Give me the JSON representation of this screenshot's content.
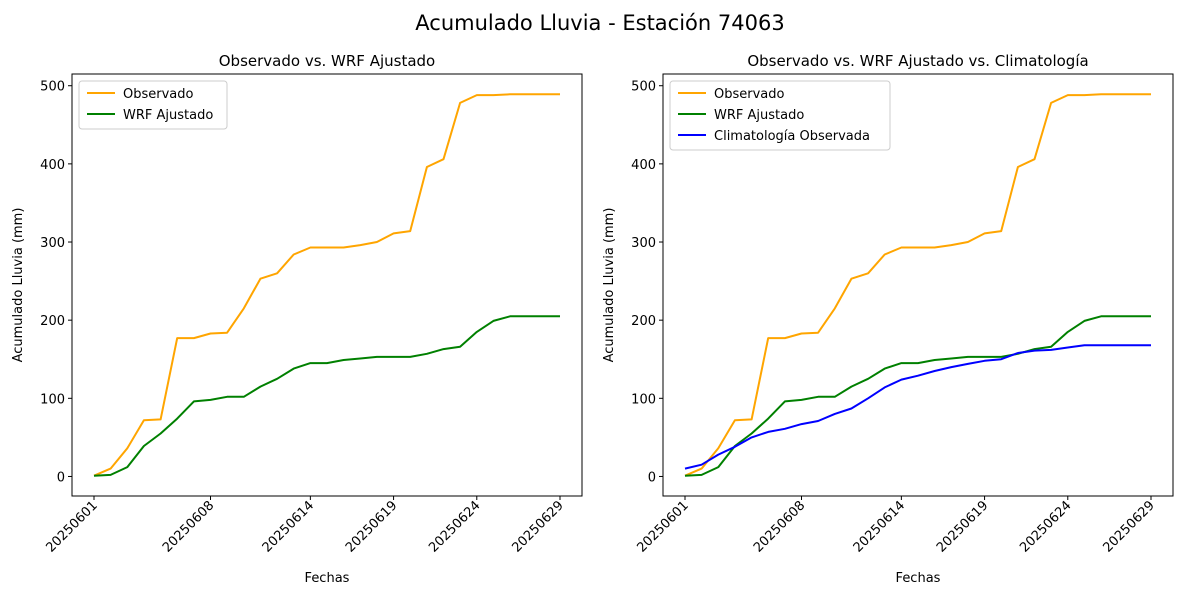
{
  "figure_title": "Acumulado Lluvia - Estación 74063",
  "chart_data": [
    {
      "type": "line",
      "title": "Observado vs. WRF Ajustado",
      "xlabel": "Fechas",
      "ylabel": "Acumulado Lluvia (mm)",
      "x": [
        "20250601",
        "20250602",
        "20250603",
        "20250604",
        "20250605",
        "20250606",
        "20250607",
        "20250608",
        "20250609",
        "20250610",
        "20250611",
        "20250612",
        "20250613",
        "20250614",
        "20250615",
        "20250616",
        "20250617",
        "20250618",
        "20250619",
        "20250620",
        "20250621",
        "20250622",
        "20250623",
        "20250624",
        "20250625",
        "20250626",
        "20250627",
        "20250628",
        "20250629"
      ],
      "xticks": [
        "20250601",
        "20250608",
        "20250614",
        "20250619",
        "20250624",
        "20250629"
      ],
      "yticks": [
        0,
        100,
        200,
        300,
        400,
        500
      ],
      "ylim": [
        -25,
        515
      ],
      "legend": "top-left",
      "grid": false,
      "series": [
        {
          "name": "Observado",
          "color": "#ffa500",
          "values": [
            1,
            10,
            36,
            72,
            73,
            177,
            177,
            183,
            184,
            215,
            253,
            260,
            284,
            293,
            293,
            293,
            296,
            300,
            311,
            314,
            396,
            406,
            478,
            488,
            488,
            489,
            489,
            489,
            489
          ]
        },
        {
          "name": "WRF Ajustado",
          "color": "#008000",
          "values": [
            1,
            2,
            12,
            39,
            55,
            74,
            96,
            98,
            102,
            102,
            115,
            125,
            138,
            145,
            145,
            149,
            151,
            153,
            153,
            153,
            157,
            163,
            166,
            185,
            199,
            205,
            205,
            205,
            205
          ]
        }
      ]
    },
    {
      "type": "line",
      "title": "Observado vs. WRF Ajustado vs. Climatología",
      "xlabel": "Fechas",
      "ylabel": "Acumulado Lluvia (mm)",
      "x": [
        "20250601",
        "20250602",
        "20250603",
        "20250604",
        "20250605",
        "20250606",
        "20250607",
        "20250608",
        "20250609",
        "20250610",
        "20250611",
        "20250612",
        "20250613",
        "20250614",
        "20250615",
        "20250616",
        "20250617",
        "20250618",
        "20250619",
        "20250620",
        "20250621",
        "20250622",
        "20250623",
        "20250624",
        "20250625",
        "20250626",
        "20250627",
        "20250628",
        "20250629"
      ],
      "xticks": [
        "20250601",
        "20250608",
        "20250614",
        "20250619",
        "20250624",
        "20250629"
      ],
      "yticks": [
        0,
        100,
        200,
        300,
        400,
        500
      ],
      "ylim": [
        -25,
        515
      ],
      "legend": "top-left",
      "grid": false,
      "series": [
        {
          "name": "Observado",
          "color": "#ffa500",
          "values": [
            1,
            10,
            36,
            72,
            73,
            177,
            177,
            183,
            184,
            215,
            253,
            260,
            284,
            293,
            293,
            293,
            296,
            300,
            311,
            314,
            396,
            406,
            478,
            488,
            488,
            489,
            489,
            489,
            489
          ]
        },
        {
          "name": "WRF Ajustado",
          "color": "#008000",
          "values": [
            1,
            2,
            12,
            39,
            55,
            74,
            96,
            98,
            102,
            102,
            115,
            125,
            138,
            145,
            145,
            149,
            151,
            153,
            153,
            153,
            157,
            163,
            166,
            185,
            199,
            205,
            205,
            205,
            205
          ]
        },
        {
          "name": "Climatología Observada",
          "color": "#0000ff",
          "values": [
            10,
            15,
            28,
            38,
            50,
            57,
            61,
            67,
            71,
            80,
            87,
            100,
            114,
            124,
            129,
            135,
            140,
            144,
            148,
            150,
            158,
            161,
            162,
            165,
            168,
            168,
            168,
            168,
            168
          ]
        }
      ]
    }
  ]
}
